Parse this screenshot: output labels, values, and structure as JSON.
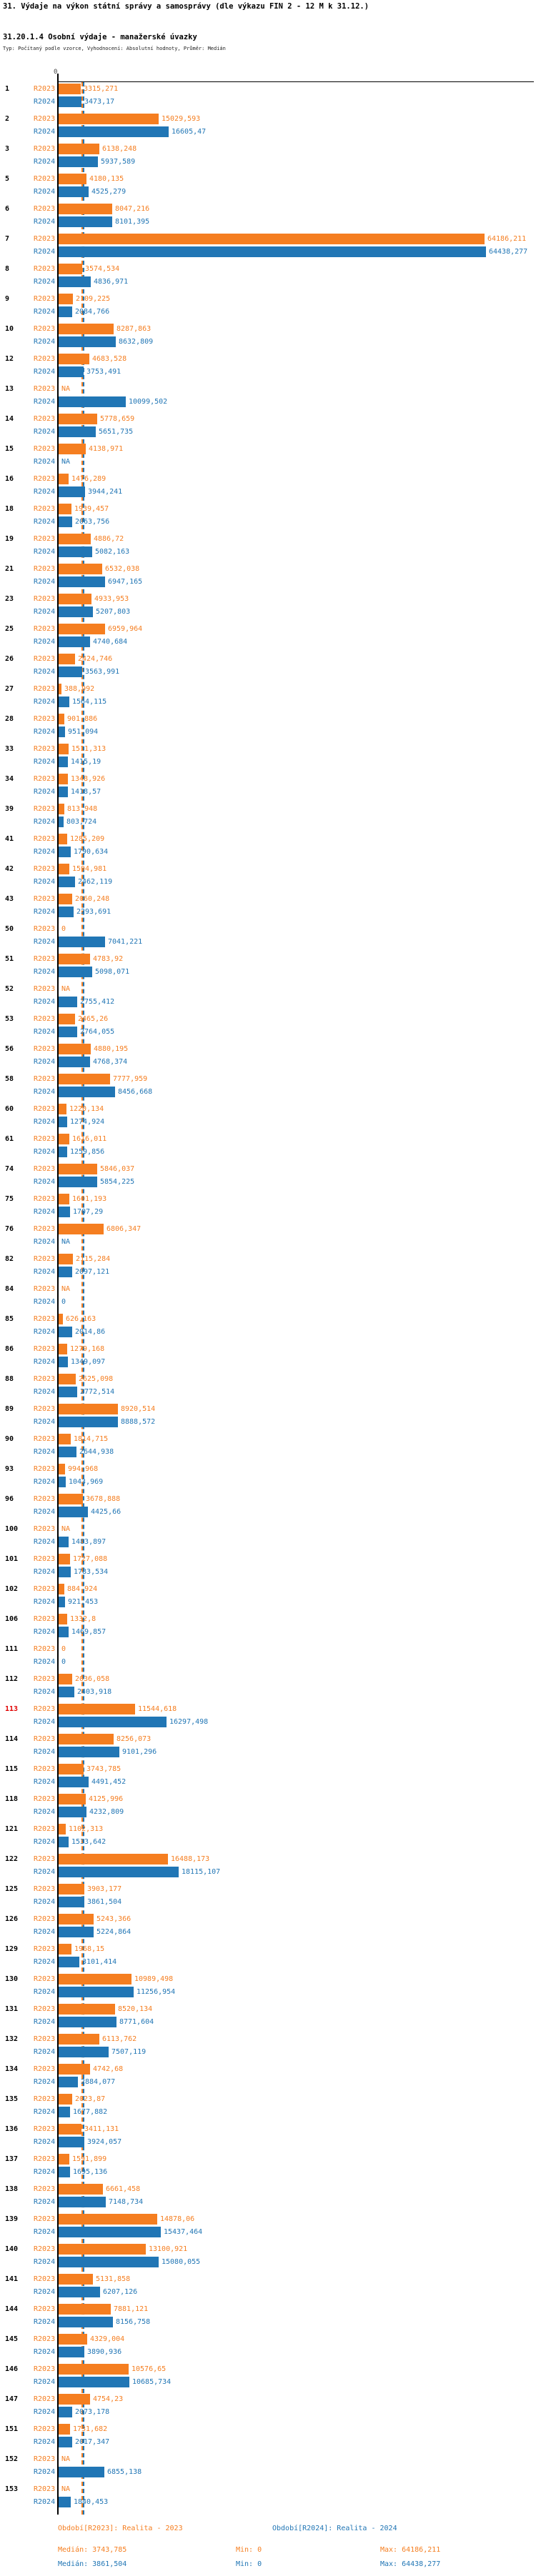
{
  "header": {
    "title": "31. Výdaje na výkon státní správy a samosprávy (dle výkazu FIN 2 - 12 M k 31.12.)",
    "subtitle": "31.20.1.4 Osobní výdaje - manažerské úvazky",
    "meta": "Typ: Počítaný podle vzorce, Vyhodnocení: Absolutní hodnoty, Průměr: Medián"
  },
  "axis": {
    "zero_label": "0"
  },
  "colors": {
    "r2023": "#F57E20",
    "r2024": "#2176B5",
    "highlight": "#E00000",
    "axis": "#000000"
  },
  "chart_data": {
    "type": "bar",
    "orientation": "horizontal",
    "series": [
      {
        "name": "R2023",
        "label": "Realita - 2023",
        "color": "#F57E20"
      },
      {
        "name": "R2024",
        "label": "Realita - 2024",
        "color": "#2176B5"
      }
    ],
    "xlim": [
      0,
      64438.277
    ],
    "median_r2023": 3743.785,
    "median_r2024": 3861.504,
    "groups": [
      {
        "id": "1",
        "r2023": "3315,271",
        "r2024": "3473,17"
      },
      {
        "id": "2",
        "r2023": "15029,593",
        "r2024": "16605,47"
      },
      {
        "id": "3",
        "r2023": "6138,248",
        "r2024": "5937,589"
      },
      {
        "id": "5",
        "r2023": "4180,135",
        "r2024": "4525,279"
      },
      {
        "id": "6",
        "r2023": "8047,216",
        "r2024": "8101,395"
      },
      {
        "id": "7",
        "r2023": "64186,211",
        "r2024": "64438,277"
      },
      {
        "id": "8",
        "r2023": "3574,534",
        "r2024": "4836,971"
      },
      {
        "id": "9",
        "r2023": "2109,225",
        "r2024": "2084,766"
      },
      {
        "id": "10",
        "r2023": "8287,863",
        "r2024": "8632,809"
      },
      {
        "id": "12",
        "r2023": "4683,528",
        "r2024": "3753,491"
      },
      {
        "id": "13",
        "r2023": "NA",
        "r2024": "10099,502"
      },
      {
        "id": "14",
        "r2023": "5778,659",
        "r2024": "5651,735"
      },
      {
        "id": "15",
        "r2023": "4138,971",
        "r2024": "NA"
      },
      {
        "id": "16",
        "r2023": "1476,289",
        "r2024": "3944,241"
      },
      {
        "id": "18",
        "r2023": "1939,457",
        "r2024": "2063,756"
      },
      {
        "id": "19",
        "r2023": "4886,72",
        "r2024": "5082,163"
      },
      {
        "id": "21",
        "r2023": "6532,038",
        "r2024": "6947,165"
      },
      {
        "id": "23",
        "r2023": "4933,953",
        "r2024": "5207,803"
      },
      {
        "id": "25",
        "r2023": "6959,964",
        "r2024": "4740,684"
      },
      {
        "id": "26",
        "r2023": "2424,746",
        "r2024": "3563,991"
      },
      {
        "id": "27",
        "r2023": "388,992",
        "r2024": "1564,115"
      },
      {
        "id": "28",
        "r2023": "901,886",
        "r2024": "951,094"
      },
      {
        "id": "33",
        "r2023": "1511,313",
        "r2024": "1415,19"
      },
      {
        "id": "34",
        "r2023": "1348,926",
        "r2024": "1418,57"
      },
      {
        "id": "39",
        "r2023": "813,948",
        "r2024": "803,724"
      },
      {
        "id": "41",
        "r2023": "1285,209",
        "r2024": "1790,634"
      },
      {
        "id": "42",
        "r2023": "1594,981",
        "r2024": "2462,119"
      },
      {
        "id": "43",
        "r2023": "2060,248",
        "r2024": "2293,691"
      },
      {
        "id": "50",
        "r2023": "0",
        "r2024": "7041,221"
      },
      {
        "id": "51",
        "r2023": "4783,92",
        "r2024": "5098,071"
      },
      {
        "id": "52",
        "r2023": "NA",
        "r2024": "2755,412"
      },
      {
        "id": "53",
        "r2023": "2465,26",
        "r2024": "2764,055"
      },
      {
        "id": "56",
        "r2023": "4880,195",
        "r2024": "4768,374"
      },
      {
        "id": "58",
        "r2023": "7777,959",
        "r2024": "8456,668"
      },
      {
        "id": "60",
        "r2023": "1220,134",
        "r2024": "1274,924"
      },
      {
        "id": "61",
        "r2023": "1616,011",
        "r2024": "1259,856"
      },
      {
        "id": "74",
        "r2023": "5846,037",
        "r2024": "5854,225"
      },
      {
        "id": "75",
        "r2023": "1601,193",
        "r2024": "1707,29"
      },
      {
        "id": "76",
        "r2023": "6806,347",
        "r2024": "NA"
      },
      {
        "id": "82",
        "r2023": "2115,284",
        "r2024": "2097,121"
      },
      {
        "id": "84",
        "r2023": "NA",
        "r2024": "0"
      },
      {
        "id": "85",
        "r2023": "626,163",
        "r2024": "2014,86"
      },
      {
        "id": "86",
        "r2023": "1279,168",
        "r2024": "1349,097"
      },
      {
        "id": "88",
        "r2023": "2625,098",
        "r2024": "2772,514"
      },
      {
        "id": "89",
        "r2023": "8920,514",
        "r2024": "8888,572"
      },
      {
        "id": "90",
        "r2023": "1814,715",
        "r2024": "2644,938"
      },
      {
        "id": "93",
        "r2023": "994,968",
        "r2024": "1043,969"
      },
      {
        "id": "96",
        "r2023": "3678,888",
        "r2024": "4425,66"
      },
      {
        "id": "100",
        "r2023": "NA",
        "r2024": "1483,897"
      },
      {
        "id": "101",
        "r2023": "1727,088",
        "r2024": "1783,534"
      },
      {
        "id": "102",
        "r2023": "884,924",
        "r2024": "921,453"
      },
      {
        "id": "106",
        "r2023": "1332,8",
        "r2024": "1469,857"
      },
      {
        "id": "111",
        "r2023": "0",
        "r2024": "0"
      },
      {
        "id": "112",
        "r2023": "2036,058",
        "r2024": "2403,918"
      },
      {
        "id": "113",
        "r2023": "11544,618",
        "r2024": "16297,498",
        "highlight": true
      },
      {
        "id": "114",
        "r2023": "8256,073",
        "r2024": "9101,296"
      },
      {
        "id": "115",
        "r2023": "3743,785",
        "r2024": "4491,452"
      },
      {
        "id": "118",
        "r2023": "4125,996",
        "r2024": "4232,809"
      },
      {
        "id": "121",
        "r2023": "1102,313",
        "r2024": "1533,642"
      },
      {
        "id": "122",
        "r2023": "16488,173",
        "r2024": "18115,107"
      },
      {
        "id": "125",
        "r2023": "3903,177",
        "r2024": "3861,504"
      },
      {
        "id": "126",
        "r2023": "5243,366",
        "r2024": "5224,864"
      },
      {
        "id": "129",
        "r2023": "1968,15",
        "r2024": "3101,414"
      },
      {
        "id": "130",
        "r2023": "10989,498",
        "r2024": "11256,954"
      },
      {
        "id": "131",
        "r2023": "8520,134",
        "r2024": "8771,604"
      },
      {
        "id": "132",
        "r2023": "6113,762",
        "r2024": "7507,119"
      },
      {
        "id": "134",
        "r2023": "4742,68",
        "r2024": "2884,077"
      },
      {
        "id": "135",
        "r2023": "2023,87",
        "r2024": "1677,882"
      },
      {
        "id": "136",
        "r2023": "3411,131",
        "r2024": "3924,057"
      },
      {
        "id": "137",
        "r2023": "1591,899",
        "r2024": "1695,136"
      },
      {
        "id": "138",
        "r2023": "6661,458",
        "r2024": "7148,734"
      },
      {
        "id": "139",
        "r2023": "14878,06",
        "r2024": "15437,464"
      },
      {
        "id": "140",
        "r2023": "13100,921",
        "r2024": "15080,055"
      },
      {
        "id": "141",
        "r2023": "5131,858",
        "r2024": "6207,126"
      },
      {
        "id": "144",
        "r2023": "7881,121",
        "r2024": "8156,758"
      },
      {
        "id": "145",
        "r2023": "4329,004",
        "r2024": "3890,936"
      },
      {
        "id": "146",
        "r2023": "10576,65",
        "r2024": "10685,734"
      },
      {
        "id": "147",
        "r2023": "4754,23",
        "r2024": "2073,178"
      },
      {
        "id": "151",
        "r2023": "1731,682",
        "r2024": "2017,347"
      },
      {
        "id": "152",
        "r2023": "NA",
        "r2024": "6855,138"
      },
      {
        "id": "153",
        "r2023": "NA",
        "r2024": "1840,453"
      }
    ]
  },
  "footer": {
    "legend_r2023": "Období[R2023]: Realita - 2023",
    "legend_r2024": "Období[R2024]: Realita - 2024",
    "stats_r2023": {
      "median": "Medián: 3743,785",
      "min": "Min: 0",
      "max": "Max: 64186,211"
    },
    "stats_r2024": {
      "median": "Medián: 3861,504",
      "min": "Min: 0",
      "max": "Max: 64438,277"
    }
  }
}
